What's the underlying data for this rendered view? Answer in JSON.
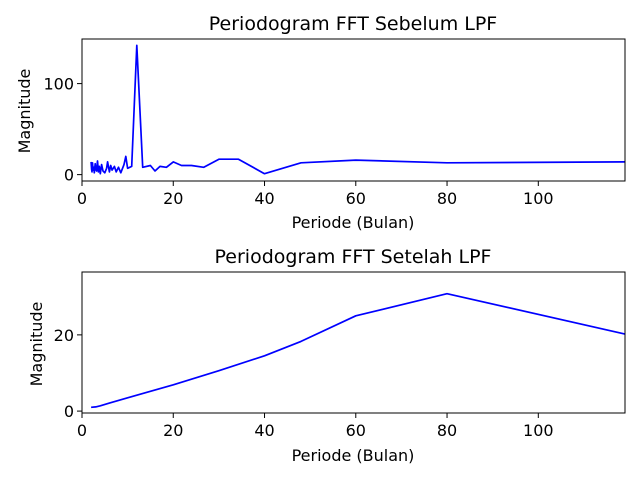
{
  "chart_data": [
    {
      "type": "line",
      "title": "Periodogram FFT Sebelum LPF",
      "xlabel": "Periode (Bulan)",
      "ylabel": "Magnitude",
      "xlim": [
        0,
        119
      ],
      "ylim": [
        -7,
        149
      ],
      "xticks": [
        0,
        20,
        40,
        60,
        80,
        100
      ],
      "yticks": [
        0,
        100
      ],
      "grid": false,
      "color": "#0000ff",
      "series": [
        {
          "x": [
            2.0,
            2.1,
            2.2,
            2.3,
            2.4,
            2.6,
            2.7,
            2.9,
            3.0,
            3.2,
            3.4,
            3.6,
            3.8,
            4.0,
            4.3,
            4.6,
            5.0,
            5.4,
            5.6,
            6.0,
            6.3,
            6.6,
            7.1,
            7.5,
            8.0,
            8.5,
            9.2,
            9.6,
            10.0,
            10.9,
            12.0,
            13.3,
            15.0,
            16.0,
            17.1,
            18.5,
            20.0,
            21.8,
            24.0,
            26.7,
            30.0,
            34.3,
            40.0,
            48.0,
            60.0,
            80.0,
            119.0
          ],
          "y": [
            14,
            6,
            3,
            13,
            5,
            8,
            2,
            12,
            6,
            4,
            15,
            3,
            9,
            1,
            11,
            4,
            2,
            7,
            14,
            3,
            10,
            5,
            9,
            3,
            8,
            2,
            11,
            20,
            7,
            9,
            142,
            8,
            10,
            4,
            9,
            8,
            14,
            10,
            10,
            8,
            17,
            17,
            1,
            13,
            16,
            13,
            14
          ]
        }
      ]
    },
    {
      "type": "line",
      "title": "Periodogram FFT Setelah LPF",
      "xlabel": "Periode (Bulan)",
      "ylabel": "Magnitude",
      "xlim": [
        0,
        119
      ],
      "ylim": [
        -0.5,
        36.5
      ],
      "xticks": [
        0,
        20,
        40,
        60,
        80,
        100
      ],
      "yticks": [
        0,
        20
      ],
      "grid": false,
      "color": "#0000ff",
      "series": [
        {
          "x": [
            2,
            3,
            4,
            6,
            10,
            15,
            20,
            30,
            40,
            48,
            60,
            80,
            119
          ],
          "y": [
            1.0,
            1.1,
            1.4,
            2.1,
            3.5,
            5.2,
            6.9,
            10.6,
            14.5,
            18.3,
            25.0,
            30.8,
            20.2
          ]
        }
      ]
    }
  ]
}
